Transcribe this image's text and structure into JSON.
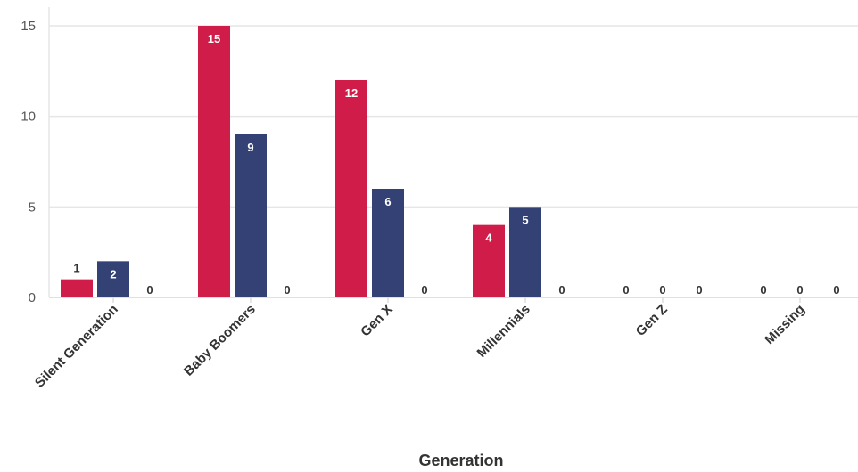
{
  "chart_data": {
    "type": "bar",
    "title": "",
    "xlabel": "Generation",
    "ylabel": "",
    "categories": [
      "Silent Generation",
      "Baby Boomers",
      "Gen X",
      "Millennials",
      "Gen Z",
      "Missing"
    ],
    "series": [
      {
        "color": "#d01c48",
        "values": [
          1,
          15,
          12,
          4,
          0,
          0
        ]
      },
      {
        "color": "#344175",
        "values": [
          2,
          9,
          6,
          5,
          0,
          0
        ]
      },
      {
        "color": "#e8a33a",
        "values": [
          0,
          0,
          0,
          0,
          0,
          0
        ]
      }
    ],
    "ylim": [
      0,
      15
    ],
    "yticks": [
      "0",
      "5",
      "10",
      "15"
    ],
    "grid": true,
    "legend": "none"
  }
}
